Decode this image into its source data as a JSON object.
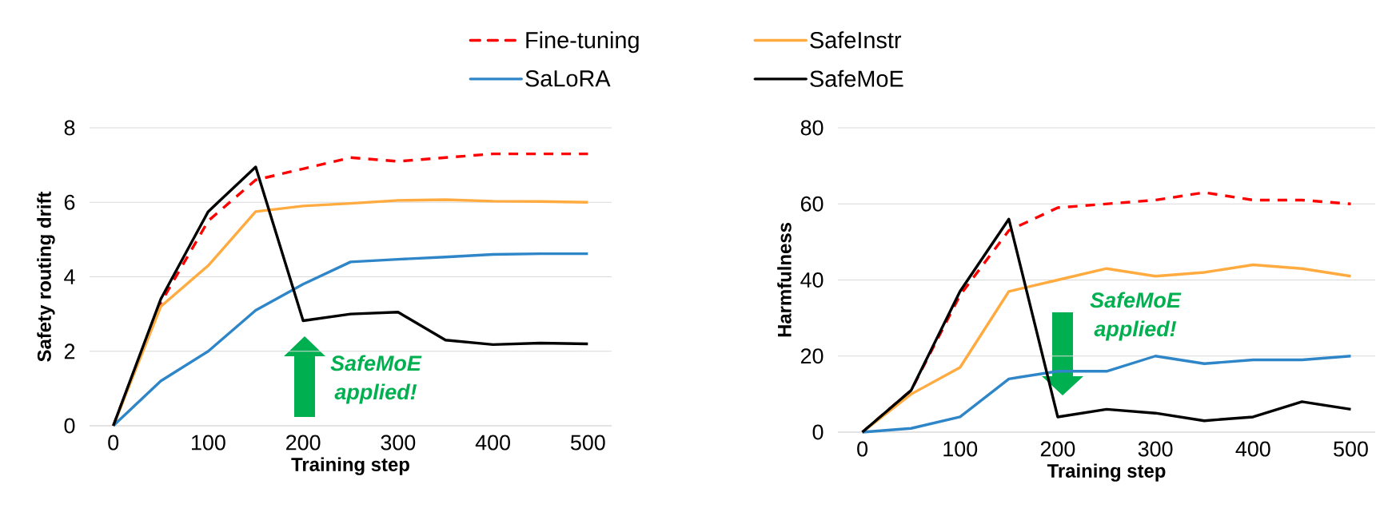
{
  "chart_data": [
    {
      "type": "line",
      "x": [
        0,
        50,
        100,
        150,
        200,
        250,
        300,
        350,
        400,
        450,
        500
      ],
      "xlabel": "Training step",
      "ylabel": "Safety routing drift",
      "xlim": [
        -25,
        525
      ],
      "ylim": [
        0,
        8
      ],
      "xticks": [
        0,
        100,
        200,
        300,
        400,
        500
      ],
      "yticks": [
        0,
        2,
        4,
        6,
        8
      ],
      "grid": "y",
      "legend": "top",
      "marker": "none",
      "annotations": [
        "SafeMoE applied!"
      ],
      "series": [
        {
          "name": "Fine-tuning",
          "color": "#ff0000",
          "line_style": "dashed",
          "values": [
            0,
            3.3,
            5.5,
            6.6,
            6.9,
            7.2,
            7.1,
            7.2,
            7.3,
            7.3,
            7.3
          ]
        },
        {
          "name": "SafeInstr",
          "color": "#ffab40",
          "line_style": "solid",
          "values": [
            0,
            3.2,
            4.3,
            5.75,
            5.9,
            5.97,
            6.05,
            6.07,
            6.03,
            6.02,
            6.0
          ]
        },
        {
          "name": "SaLoRA",
          "color": "#2e86c8",
          "line_style": "solid",
          "values": [
            0,
            1.2,
            2.0,
            3.1,
            3.8,
            4.4,
            4.47,
            4.53,
            4.6,
            4.62,
            4.62
          ]
        },
        {
          "name": "SafeMoE",
          "color": "#000000",
          "line_style": "solid",
          "values": [
            0,
            3.4,
            5.75,
            6.95,
            2.82,
            3.0,
            3.05,
            2.3,
            2.18,
            2.22,
            2.2
          ]
        }
      ]
    },
    {
      "type": "line",
      "x": [
        0,
        50,
        100,
        150,
        200,
        250,
        300,
        350,
        400,
        450,
        500
      ],
      "xlabel": "Training step",
      "ylabel": "Harmfulness",
      "xlim": [
        -25,
        525
      ],
      "ylim": [
        0,
        80
      ],
      "xticks": [
        0,
        100,
        200,
        300,
        400,
        500
      ],
      "yticks": [
        0,
        20,
        40,
        60,
        80
      ],
      "grid": "y",
      "marker": "none",
      "annotations": [
        "SafeMoE applied!"
      ],
      "series": [
        {
          "color": "#ff0000",
          "line_style": "dashed",
          "values": [
            0,
            11,
            36,
            53,
            59,
            60,
            61,
            63,
            61,
            61,
            60
          ]
        },
        {
          "color": "#ffab40",
          "line_style": "solid",
          "values": [
            0,
            10,
            17,
            37,
            40,
            43,
            41,
            42,
            44,
            43,
            41
          ]
        },
        {
          "color": "#2e86c8",
          "line_style": "solid",
          "values": [
            0,
            1,
            4,
            14,
            16,
            16,
            20,
            18,
            19,
            19,
            20
          ]
        },
        {
          "color": "#000000",
          "line_style": "solid",
          "values": [
            0,
            11,
            37,
            56,
            4,
            6,
            5,
            3,
            4,
            8,
            6
          ]
        }
      ]
    }
  ]
}
